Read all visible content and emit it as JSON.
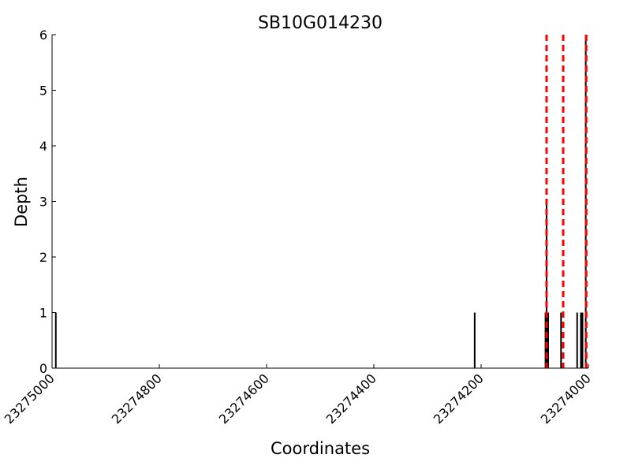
{
  "chart_data": {
    "type": "spike",
    "title": "SB10G014230",
    "x_label": "Coordinates",
    "y_label": "Depth",
    "x": [
      23274993,
      23274212,
      23274080,
      23274078,
      23274075,
      23274051,
      23274021,
      23274014,
      23274011,
      23274005
    ],
    "values": [
      1,
      1,
      1,
      3,
      1,
      1,
      1,
      1,
      1,
      6
    ],
    "color": "#000000",
    "vlines": [
      23274078,
      23274047,
      23274004
    ],
    "vline_color": "#ff0000",
    "xlim": [
      23275000,
      23274000
    ],
    "xticks": [
      23275000,
      23274800,
      23274600,
      23274400,
      23274200,
      23274000
    ],
    "ylim": [
      0,
      6
    ],
    "yticks": [
      0,
      1,
      2,
      3,
      4,
      5,
      6
    ]
  }
}
